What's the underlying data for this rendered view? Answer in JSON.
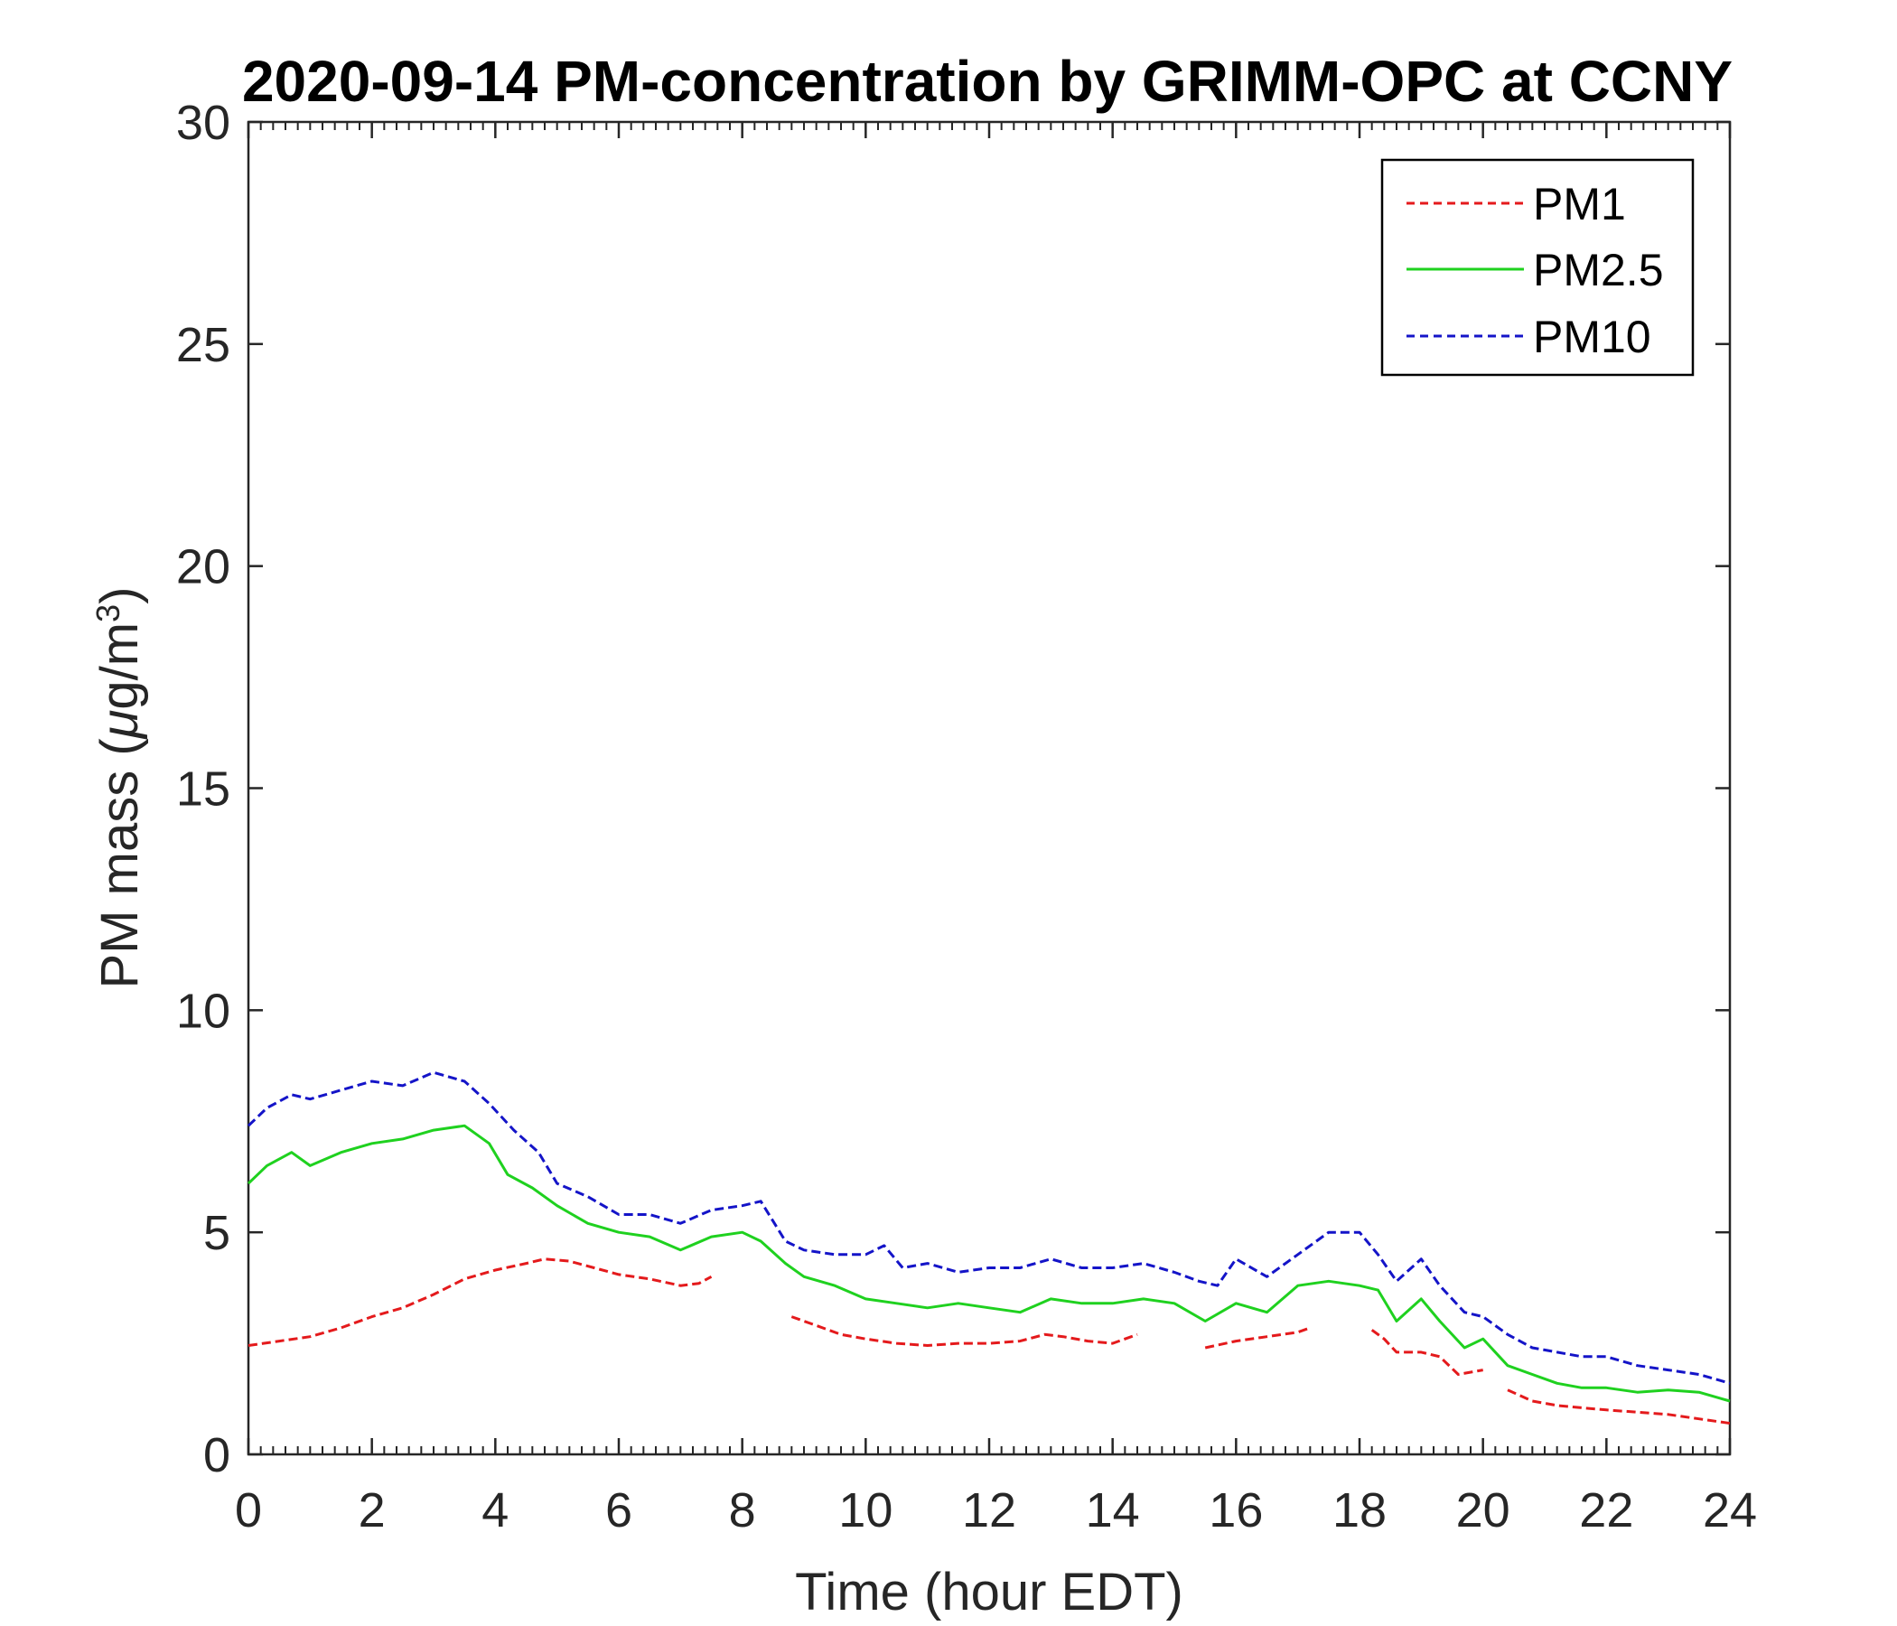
{
  "chart_data": {
    "type": "line",
    "title": "2020-09-14 PM-concentration by GRIMM-OPC at CCNY",
    "xlabel": "Time (hour EDT)",
    "ylabel_main": "PM mass (",
    "ylabel_mu": "μ",
    "ylabel_unit": "g/m",
    "ylabel_sup": "3",
    "ylabel_close": ")",
    "xlim": [
      0,
      24
    ],
    "ylim": [
      0,
      30
    ],
    "xticks": [
      0,
      2,
      4,
      6,
      8,
      10,
      12,
      14,
      16,
      18,
      20,
      22,
      24
    ],
    "yticks": [
      0,
      5,
      10,
      15,
      20,
      25,
      30
    ],
    "grid": false,
    "legend_position": "top-right",
    "series": [
      {
        "name": "PM1",
        "color": "#e41a1c",
        "style": "dashed",
        "segments": [
          [
            [
              0,
              2.45
            ],
            [
              0.5,
              2.55
            ],
            [
              1,
              2.65
            ],
            [
              1.5,
              2.85
            ],
            [
              2,
              3.1
            ],
            [
              2.5,
              3.3
            ],
            [
              3,
              3.6
            ],
            [
              3.5,
              3.95
            ],
            [
              4,
              4.15
            ],
            [
              4.5,
              4.3
            ],
            [
              4.8,
              4.4
            ],
            [
              5.2,
              4.35
            ],
            [
              5.6,
              4.2
            ],
            [
              6,
              4.05
            ],
            [
              6.5,
              3.95
            ],
            [
              7,
              3.8
            ],
            [
              7.3,
              3.85
            ],
            [
              7.5,
              4.0
            ]
          ],
          [
            [
              8.8,
              3.1
            ],
            [
              9.2,
              2.9
            ],
            [
              9.6,
              2.7
            ],
            [
              10,
              2.6
            ],
            [
              10.5,
              2.5
            ],
            [
              11,
              2.45
            ],
            [
              11.5,
              2.5
            ],
            [
              12,
              2.5
            ],
            [
              12.5,
              2.55
            ],
            [
              12.9,
              2.7
            ],
            [
              13.2,
              2.65
            ],
            [
              13.6,
              2.55
            ],
            [
              14,
              2.5
            ],
            [
              14.4,
              2.7
            ]
          ],
          [
            [
              15.5,
              2.4
            ],
            [
              16,
              2.55
            ],
            [
              16.5,
              2.65
            ],
            [
              17,
              2.75
            ],
            [
              17.2,
              2.85
            ]
          ],
          [
            [
              18.2,
              2.8
            ],
            [
              18.4,
              2.6
            ],
            [
              18.6,
              2.3
            ],
            [
              19,
              2.3
            ],
            [
              19.3,
              2.2
            ],
            [
              19.6,
              1.8
            ],
            [
              20,
              1.9
            ]
          ],
          [
            [
              20.4,
              1.45
            ],
            [
              20.8,
              1.2
            ],
            [
              21.2,
              1.1
            ],
            [
              21.6,
              1.05
            ],
            [
              22,
              1.0
            ],
            [
              22.5,
              0.95
            ],
            [
              23,
              0.9
            ],
            [
              23.5,
              0.8
            ],
            [
              24,
              0.7
            ]
          ]
        ]
      },
      {
        "name": "PM2.5",
        "color": "#1fd11f",
        "style": "solid",
        "segments": [
          [
            [
              0,
              6.1
            ],
            [
              0.3,
              6.5
            ],
            [
              0.7,
              6.8
            ],
            [
              1,
              6.5
            ],
            [
              1.5,
              6.8
            ],
            [
              2,
              7.0
            ],
            [
              2.5,
              7.1
            ],
            [
              3,
              7.3
            ],
            [
              3.5,
              7.4
            ],
            [
              3.9,
              7.0
            ],
            [
              4.2,
              6.3
            ],
            [
              4.6,
              6.0
            ],
            [
              5,
              5.6
            ],
            [
              5.5,
              5.2
            ],
            [
              6,
              5.0
            ],
            [
              6.5,
              4.9
            ],
            [
              7,
              4.6
            ],
            [
              7.5,
              4.9
            ],
            [
              8,
              5.0
            ],
            [
              8.3,
              4.8
            ],
            [
              8.7,
              4.3
            ],
            [
              9,
              4.0
            ],
            [
              9.5,
              3.8
            ],
            [
              10,
              3.5
            ],
            [
              10.5,
              3.4
            ],
            [
              11,
              3.3
            ],
            [
              11.5,
              3.4
            ],
            [
              12,
              3.3
            ],
            [
              12.5,
              3.2
            ],
            [
              13,
              3.5
            ],
            [
              13.5,
              3.4
            ],
            [
              14,
              3.4
            ],
            [
              14.5,
              3.5
            ],
            [
              15,
              3.4
            ],
            [
              15.5,
              3.0
            ],
            [
              16,
              3.4
            ],
            [
              16.5,
              3.2
            ],
            [
              17,
              3.8
            ],
            [
              17.5,
              3.9
            ],
            [
              18,
              3.8
            ],
            [
              18.3,
              3.7
            ],
            [
              18.6,
              3.0
            ],
            [
              19,
              3.5
            ],
            [
              19.3,
              3.0
            ],
            [
              19.7,
              2.4
            ],
            [
              20,
              2.6
            ],
            [
              20.4,
              2.0
            ],
            [
              20.8,
              1.8
            ],
            [
              21.2,
              1.6
            ],
            [
              21.6,
              1.5
            ],
            [
              22,
              1.5
            ],
            [
              22.5,
              1.4
            ],
            [
              23,
              1.45
            ],
            [
              23.5,
              1.4
            ],
            [
              24,
              1.2
            ]
          ]
        ]
      },
      {
        "name": "PM10",
        "color": "#1414c8",
        "style": "dashed",
        "segments": [
          [
            [
              0,
              7.4
            ],
            [
              0.3,
              7.8
            ],
            [
              0.7,
              8.1
            ],
            [
              1,
              8.0
            ],
            [
              1.5,
              8.2
            ],
            [
              2,
              8.4
            ],
            [
              2.5,
              8.3
            ],
            [
              3,
              8.6
            ],
            [
              3.5,
              8.4
            ],
            [
              3.9,
              7.9
            ],
            [
              4.3,
              7.3
            ],
            [
              4.7,
              6.8
            ],
            [
              5,
              6.1
            ],
            [
              5.5,
              5.8
            ],
            [
              6,
              5.4
            ],
            [
              6.5,
              5.4
            ],
            [
              7,
              5.2
            ],
            [
              7.5,
              5.5
            ],
            [
              8,
              5.6
            ],
            [
              8.3,
              5.7
            ],
            [
              8.7,
              4.8
            ],
            [
              9,
              4.6
            ],
            [
              9.5,
              4.5
            ],
            [
              10,
              4.5
            ],
            [
              10.3,
              4.7
            ],
            [
              10.6,
              4.2
            ],
            [
              11,
              4.3
            ],
            [
              11.5,
              4.1
            ],
            [
              12,
              4.2
            ],
            [
              12.5,
              4.2
            ],
            [
              13,
              4.4
            ],
            [
              13.5,
              4.2
            ],
            [
              14,
              4.2
            ],
            [
              14.5,
              4.3
            ],
            [
              15,
              4.1
            ],
            [
              15.4,
              3.9
            ],
            [
              15.7,
              3.8
            ],
            [
              16,
              4.4
            ],
            [
              16.5,
              4.0
            ],
            [
              17,
              4.5
            ],
            [
              17.5,
              5.0
            ],
            [
              18,
              5.0
            ],
            [
              18.3,
              4.5
            ],
            [
              18.6,
              3.9
            ],
            [
              19,
              4.4
            ],
            [
              19.3,
              3.8
            ],
            [
              19.7,
              3.2
            ],
            [
              20,
              3.1
            ],
            [
              20.4,
              2.7
            ],
            [
              20.8,
              2.4
            ],
            [
              21.2,
              2.3
            ],
            [
              21.6,
              2.2
            ],
            [
              22,
              2.2
            ],
            [
              22.5,
              2.0
            ],
            [
              23,
              1.9
            ],
            [
              23.5,
              1.8
            ],
            [
              24,
              1.6
            ]
          ]
        ]
      }
    ]
  }
}
